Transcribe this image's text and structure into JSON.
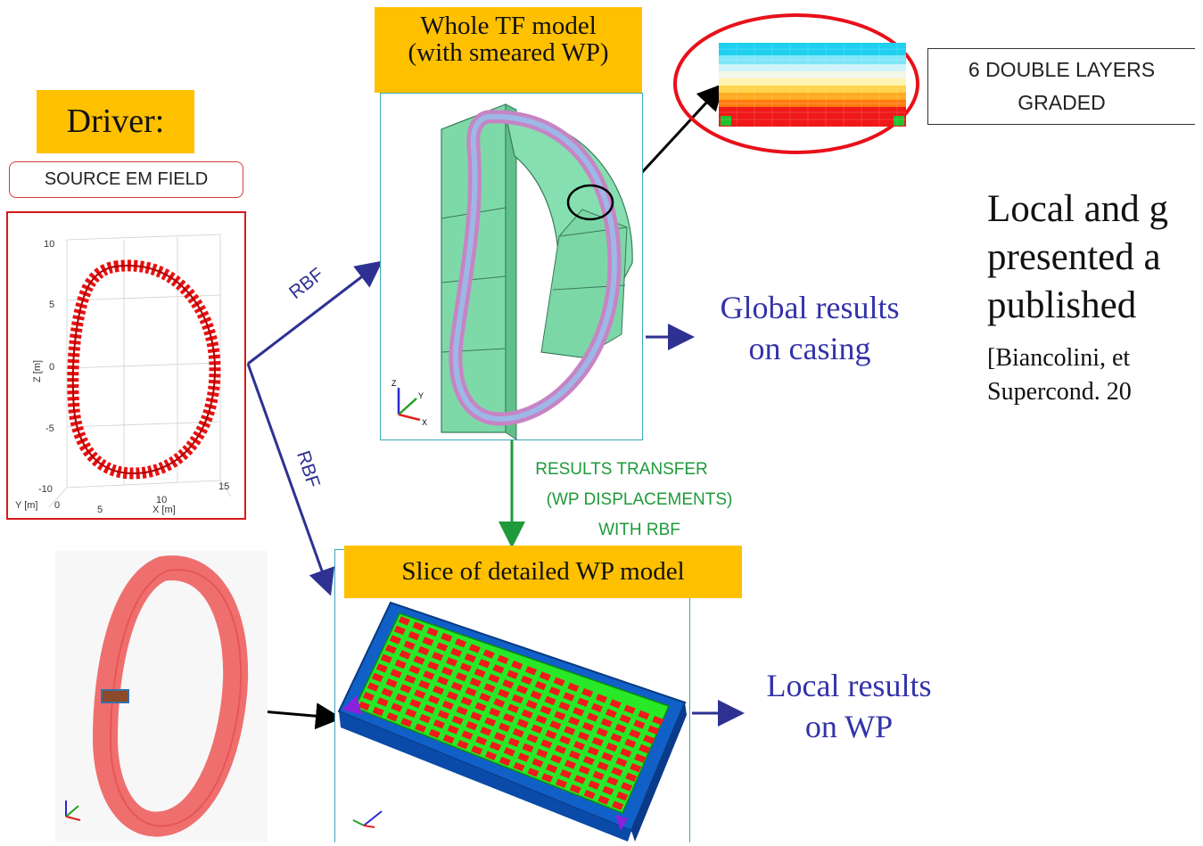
{
  "labels": {
    "whole_tf": [
      "Whole TF model",
      "(with smeared WP)"
    ],
    "driver": "Driver:",
    "source_em": "SOURCE EM FIELD",
    "double_layers": [
      "6 DOUBLE LAYERS",
      "GRADED"
    ],
    "slice": "Slice of detailed WP model",
    "results_transfer": [
      "RESULTS TRANSFER",
      "(WP DISPLACEMENTS)",
      "WITH RBF"
    ],
    "rbf_top": "RBF",
    "rbf_bottom": "RBF",
    "global_results": [
      "Global results",
      "on casing"
    ],
    "local_results": [
      "Local results",
      "on WP"
    ],
    "side_text": [
      "Local and g",
      "presented a",
      "published"
    ],
    "citation": [
      "[Biancolini, et",
      "Supercond. 20"
    ]
  },
  "plot": {
    "z_ticks": [
      "10",
      "5",
      "0",
      "-5",
      "-10"
    ],
    "z_label": "Z [m]",
    "y_label": "Y  [m]",
    "y_tick": "0",
    "x_ticks": [
      "5",
      "10",
      "15"
    ],
    "x_label": "X  [m]"
  },
  "axis_triad": [
    "X",
    "Y",
    "Z"
  ],
  "colors": {
    "label_bg": "#ffc000",
    "arrow_blue": "#2e3192",
    "transfer_green": "#1e9a3a",
    "result_blue": "#3333aa",
    "red_highlight": "#e8101a"
  }
}
